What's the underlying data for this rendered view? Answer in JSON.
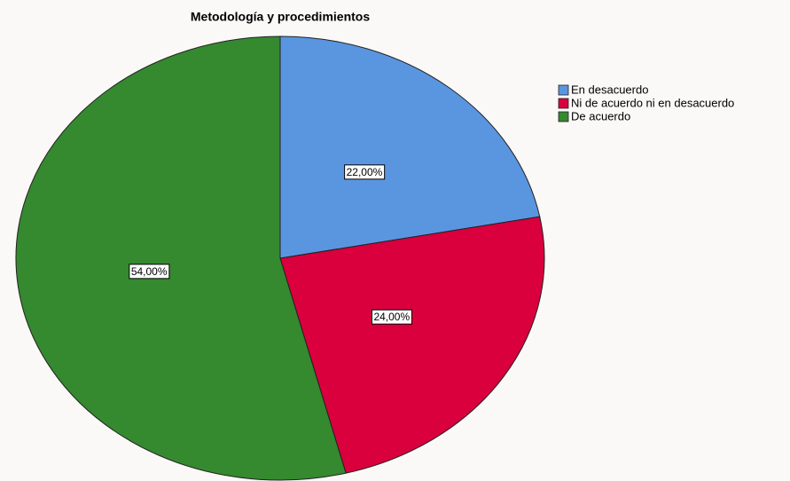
{
  "chart_data": {
    "type": "pie",
    "title": "Metodología y procedimientos",
    "categories": [
      "En desacuerdo",
      "Ni de acuerdo ni en desacuerdo",
      "De acuerdo"
    ],
    "values": [
      22,
      24,
      54
    ],
    "value_labels": [
      "22,00%",
      "24,00%",
      "54,00%"
    ],
    "colors": [
      "#5a96e0",
      "#d9003d",
      "#35892f"
    ],
    "legend": "right"
  }
}
